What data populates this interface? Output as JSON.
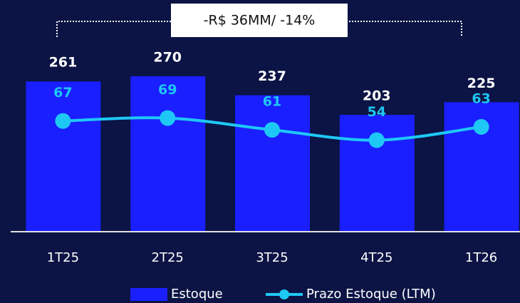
{
  "chart_data": {
    "type": "bar_line",
    "annotation": "-R$ 36MM/ -14%",
    "categories": [
      "1T25",
      "2T25",
      "3T25",
      "4T25",
      "1T26"
    ],
    "series": [
      {
        "name": "Estoque",
        "color": "#1a1fff",
        "values": [
          261,
          270,
          237,
          203,
          225
        ]
      },
      {
        "name": "Prazo Estoque (LTM)",
        "color": "#1ec8f5",
        "values": [
          67,
          69,
          61,
          54,
          63
        ],
        "axis": "y2"
      }
    ],
    "ylim": [
      0,
      400
    ],
    "y2lim": [
      -8,
      148
    ]
  }
}
